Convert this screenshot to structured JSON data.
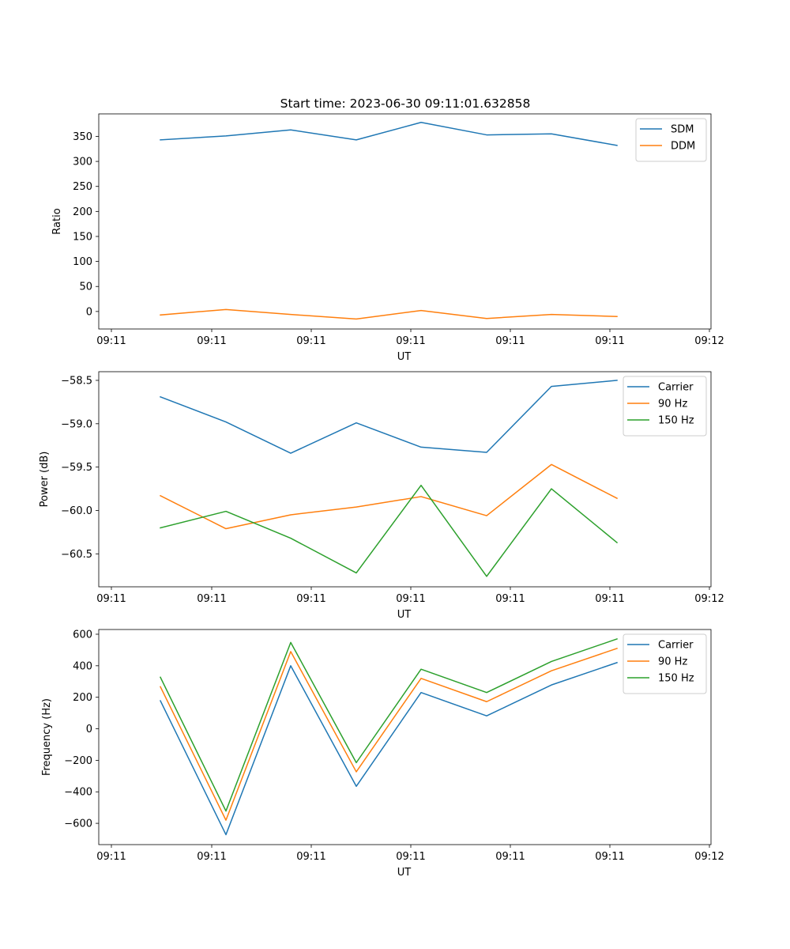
{
  "title": "Start time: 2023-06-30 09:11:01.632858",
  "chart_data": [
    {
      "type": "line",
      "xlabel": "UT",
      "ylabel": "Ratio",
      "x_tick_labels": [
        "09:11",
        "09:11",
        "09:11",
        "09:11",
        "09:11",
        "09:11",
        "09:12"
      ],
      "ylim": [
        -35,
        395
      ],
      "y_ticks": [
        0,
        50,
        100,
        150,
        200,
        250,
        300,
        350
      ],
      "legend_position": "upper right",
      "grid": false,
      "series": [
        {
          "name": "SDM",
          "color": "#1f77b4",
          "values": [
            343,
            351,
            363,
            343,
            378,
            353,
            355,
            332
          ]
        },
        {
          "name": "DDM",
          "color": "#ff7f0e",
          "values": [
            -7,
            4,
            -6,
            -15,
            2,
            -14,
            -6,
            -10
          ]
        }
      ]
    },
    {
      "type": "line",
      "xlabel": "UT",
      "ylabel": "Power (dB)",
      "x_tick_labels": [
        "09:11",
        "09:11",
        "09:11",
        "09:11",
        "09:11",
        "09:11",
        "09:12"
      ],
      "ylim": [
        -60.88,
        -58.4
      ],
      "y_ticks": [
        -60.5,
        -60.0,
        -59.5,
        -59.0,
        -58.5
      ],
      "y_tick_labels": [
        "−60.5",
        "−60.0",
        "−59.5",
        "−59.0",
        "−58.5"
      ],
      "legend_position": "upper right",
      "grid": false,
      "series": [
        {
          "name": "Carrier",
          "color": "#1f77b4",
          "values": [
            -58.69,
            -58.98,
            -59.34,
            -58.99,
            -59.27,
            -59.33,
            -58.57,
            -58.5
          ]
        },
        {
          "name": "90 Hz",
          "color": "#ff7f0e",
          "values": [
            -59.83,
            -60.21,
            -60.05,
            -59.96,
            -59.84,
            -60.06,
            -59.47,
            -59.86
          ]
        },
        {
          "name": "150 Hz",
          "color": "#2ca02c",
          "values": [
            -60.2,
            -60.01,
            -60.32,
            -60.72,
            -59.71,
            -60.76,
            -59.75,
            -60.37
          ]
        }
      ]
    },
    {
      "type": "line",
      "xlabel": "UT",
      "ylabel": "Frequency (Hz)",
      "x_tick_labels": [
        "09:11",
        "09:11",
        "09:11",
        "09:11",
        "09:11",
        "09:11",
        "09:12"
      ],
      "ylim": [
        -735,
        630
      ],
      "y_ticks": [
        -600,
        -400,
        -200,
        0,
        200,
        400,
        600
      ],
      "y_tick_labels": [
        "−600",
        "−400",
        "−200",
        "0",
        "200",
        "400",
        "600"
      ],
      "legend_position": "upper right",
      "grid": false,
      "series": [
        {
          "name": "Carrier",
          "color": "#1f77b4",
          "values": [
            178,
            -672,
            400,
            -365,
            230,
            82,
            278,
            420
          ]
        },
        {
          "name": "90 Hz",
          "color": "#ff7f0e",
          "values": [
            267,
            -580,
            490,
            -273,
            320,
            172,
            368,
            510
          ]
        },
        {
          "name": "150 Hz",
          "color": "#2ca02c",
          "values": [
            327,
            -522,
            548,
            -215,
            378,
            230,
            427,
            570
          ]
        }
      ]
    }
  ]
}
